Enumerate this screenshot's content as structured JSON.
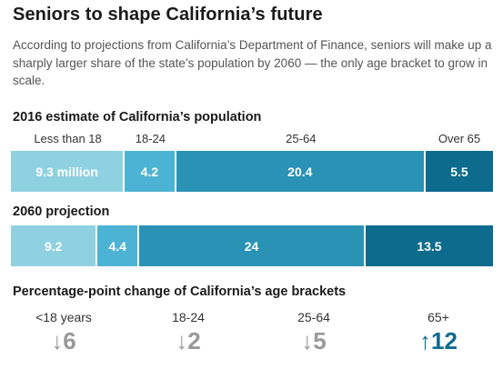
{
  "title": "Seniors to shape California’s future",
  "intro": "According to projections from California’s Department of Finance, seniors will make up a sharply larger share of the state’s population by 2060 — the only age bracket to grow in scale.",
  "colors": {
    "seg1": "#8fd1e1",
    "seg2": "#4db3d4",
    "seg3": "#2a93b5",
    "seg4": "#0d6b8e",
    "decrease": "#999999",
    "increase": "#0d6b8e"
  },
  "chart_data": [
    {
      "type": "bar",
      "stacked": true,
      "orientation": "horizontal",
      "title": "2016 estimate of California’s population",
      "categories": [
        "Less than 18",
        "18-24",
        "25-64",
        "Over 65"
      ],
      "values": [
        9.3,
        4.2,
        20.4,
        5.5
      ],
      "value_labels": [
        "9.3 million",
        "4.2",
        "20.4",
        "5.5"
      ],
      "unit": "million"
    },
    {
      "type": "bar",
      "stacked": true,
      "orientation": "horizontal",
      "title": "2060 projection",
      "categories": [
        "Less than 18",
        "18-24",
        "25-64",
        "Over 65"
      ],
      "values": [
        9.2,
        4.4,
        24,
        13.5
      ],
      "value_labels": [
        "9.2",
        "4.4",
        "24",
        "13.5"
      ],
      "unit": "million"
    },
    {
      "type": "table",
      "title": "Percentage-point change of California’s age brackets",
      "categories": [
        "<18 years",
        "18-24",
        "25-64",
        "65+"
      ],
      "values": [
        -6,
        -2,
        -5,
        12
      ],
      "value_labels": [
        "↓6",
        "↓2",
        "↓5",
        "↑12"
      ]
    }
  ]
}
